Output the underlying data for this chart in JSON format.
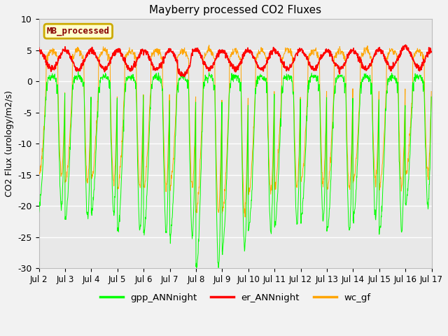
{
  "title": "Mayberry processed CO2 Fluxes",
  "ylabel": "CO2 Flux (urology/m2/s)",
  "ylim": [
    -30,
    10
  ],
  "yticks": [
    10,
    5,
    0,
    -5,
    -10,
    -15,
    -20,
    -25,
    -30
  ],
  "bg_color": "#f2f2f2",
  "plot_bg_color": "#e8e8e8",
  "legend_label": "MB_processed",
  "legend_facecolor": "#ffffcc",
  "legend_edgecolor": "#ccaa00",
  "legend_textcolor": "#880000",
  "series": {
    "gpp": {
      "color": "#00ff00",
      "label": "gpp_ANNnight"
    },
    "er": {
      "color": "#ff0000",
      "label": "er_ANNnight"
    },
    "wc": {
      "color": "#ffa500",
      "label": "wc_gf"
    }
  },
  "start_day": 2,
  "end_day": 17,
  "points_per_day": 96
}
